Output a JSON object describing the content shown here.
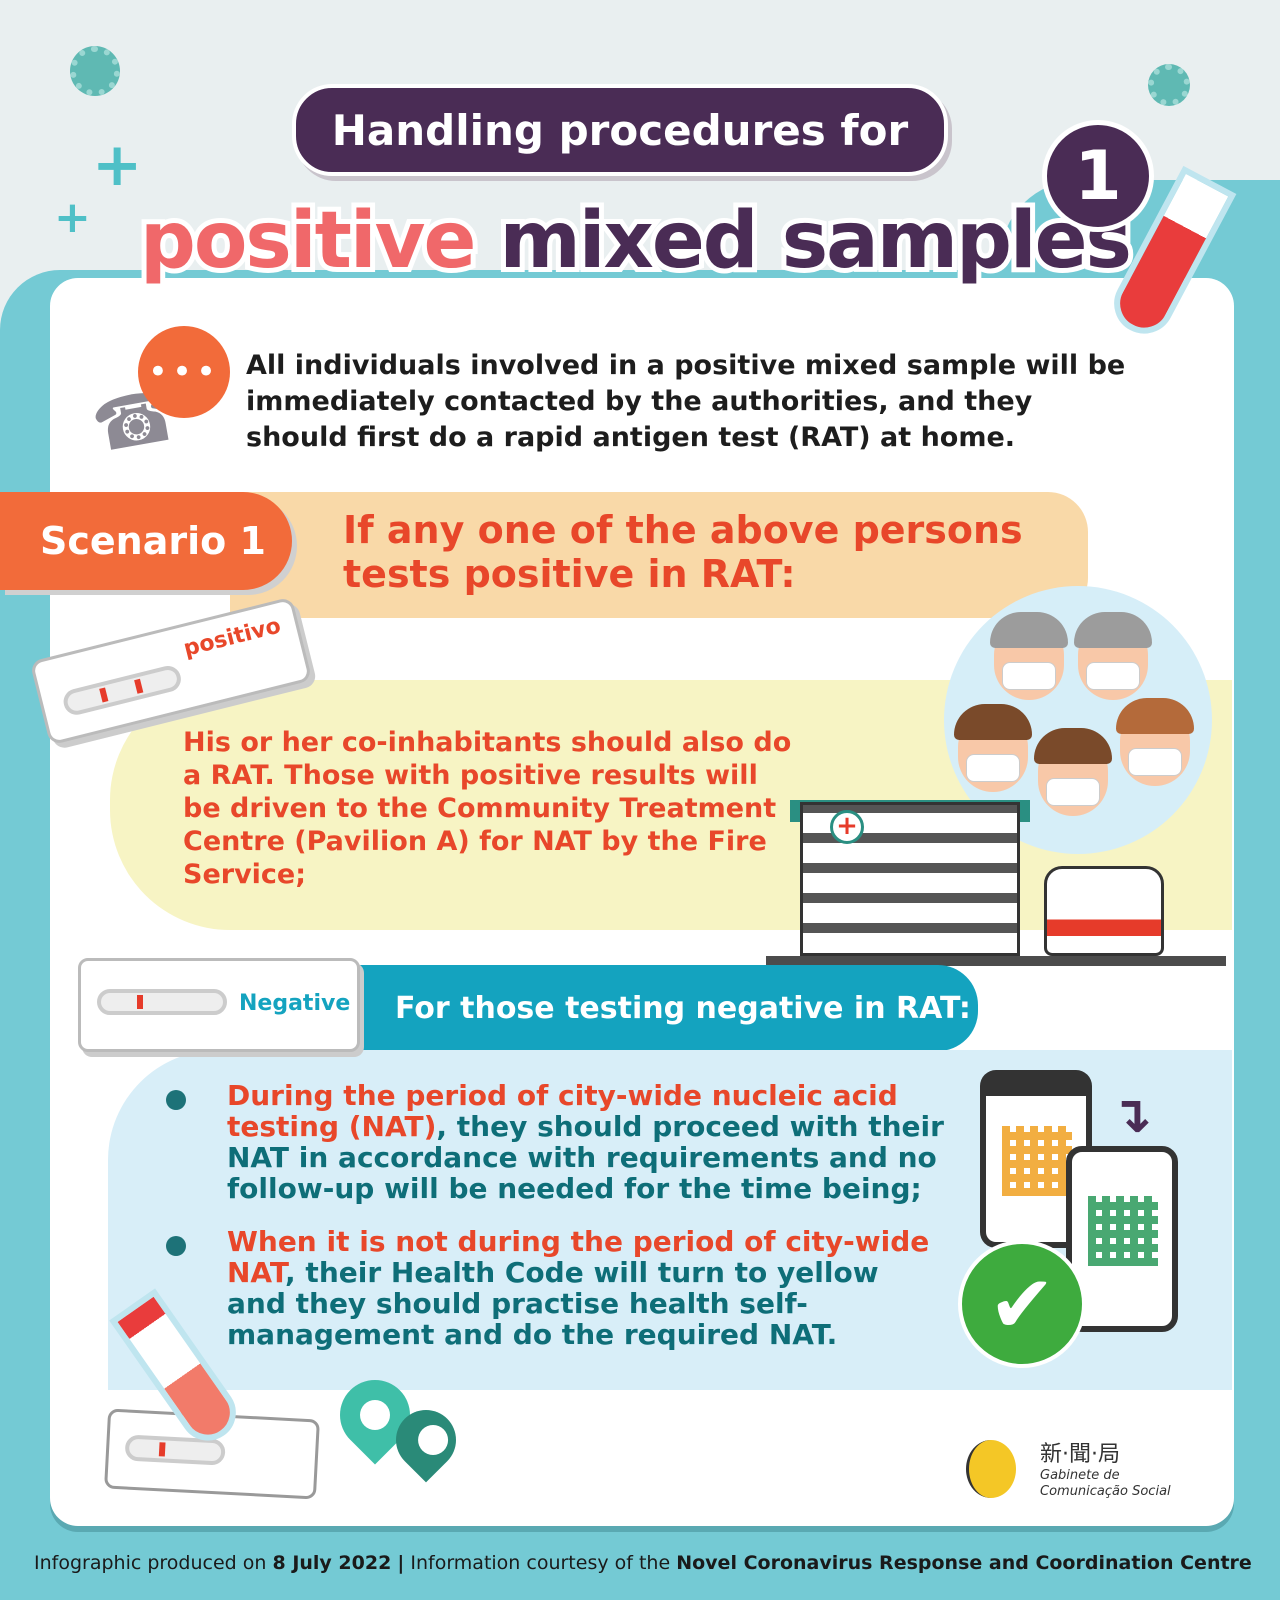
{
  "title": {
    "line1": "Handling procedures for",
    "line2_highlight": "positive",
    "line2_rest": "mixed samples",
    "badge_number": "1"
  },
  "intro": "All individuals involved in a positive mixed sample will be immediately contacted by the authorities, and they should first do a rapid antigen test (RAT) at home.",
  "scenario": {
    "tab_label": "Scenario 1",
    "heading": "If any one of the above persons tests positive in RAT:",
    "positive_label": "positivo",
    "positive_text": "His or her co-inhabitants should also do a RAT. Those with positive results will be driven to the Community Treatment Centre (Pavilion A) for NAT by the Fire Service;"
  },
  "negative": {
    "label": "Negative",
    "heading": "For those testing negative in RAT:",
    "bullets": [
      {
        "highlight": "During the period of city-wide nucleic acid testing (NAT)",
        "rest": ", they should proceed with their NAT in accordance with requirements and no follow-up will be needed for the time being;"
      },
      {
        "highlight": "When it is not during the period of city-wide NAT",
        "rest": ", their Health Code will turn to yellow and they should practise health self-management and do the required NAT."
      }
    ]
  },
  "logo": {
    "chinese": "新·聞·局",
    "name_line1": "Gabinete de",
    "name_line2": "Comunicação Social",
    "mark": "GCS"
  },
  "footer": {
    "produced_prefix": "Infographic produced on",
    "date": "8 July 2022",
    "separator": "|",
    "courtesy_prefix": "Information courtesy of the",
    "source": "Novel Coronavirus Response and Coordination Centre"
  },
  "colors": {
    "purple": "#4a2c55",
    "coral": "#f0686a",
    "orange": "#f26b3a",
    "teal": "#14a3bf",
    "frame": "#74cad4"
  }
}
